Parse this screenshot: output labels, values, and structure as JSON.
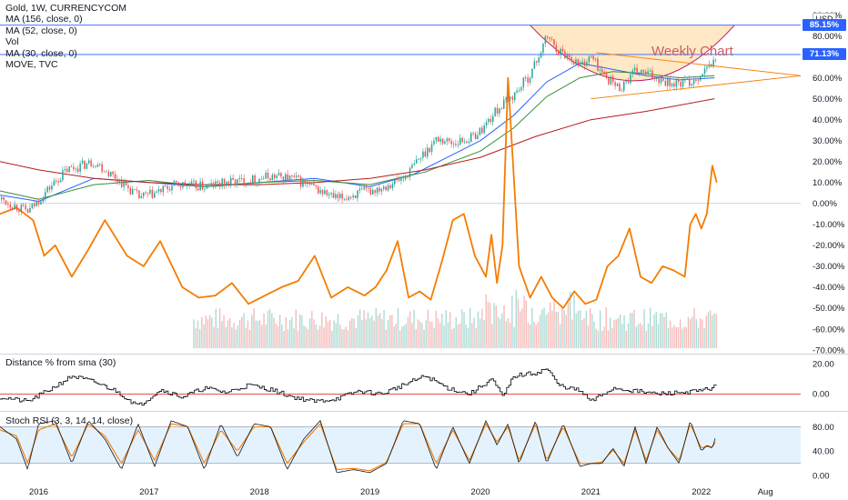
{
  "legend": {
    "symbol_line": "Gold, 1W, CURRENCYCOM",
    "ma156": "MA (156, close, 0)",
    "ma52": "MA (52, close, 0)",
    "vol": "Vol",
    "ma30": "MA (30, close, 0)",
    "move": "MOVE, TVC"
  },
  "currency_badge": "USD",
  "price_tags": [
    {
      "text": "85.15%",
      "value": 85.15,
      "color": "#2962ff"
    },
    {
      "text": "71.13%",
      "value": 71.13,
      "color": "#2962ff"
    }
  ],
  "annotation": "Weekly Chart",
  "colors": {
    "price_up": "#26a69a",
    "price_down": "#ef5350",
    "ma156": "#b71c1c",
    "ma52": "#388e3c",
    "ma30": "#2962ff",
    "move": "#f57c00",
    "volume_up": "#a8d8d2",
    "volume_down": "#f5b7b5",
    "cup_fill": "#ffe0b2",
    "cup_outline": "#c2185b",
    "stoch_band": "#e3f2fd",
    "distance_zero": "#e53935"
  },
  "chart_data": [
    {
      "type": "line",
      "title": "Gold, 1W, CURRENCYCOM",
      "y_scale": "percent",
      "ylim": [
        -70,
        95
      ],
      "y_ticks": [
        "90.00%",
        "80.00%",
        "70.00%",
        "60.00%",
        "50.00%",
        "40.00%",
        "30.00%",
        "20.00%",
        "10.00%",
        "0.00%",
        "-10.00%",
        "-20.00%",
        "-30.00%",
        "-40.00%",
        "-50.00%",
        "-60.00%",
        "-70.00%"
      ],
      "x_ticks": [
        "2016",
        "2017",
        "2018",
        "2019",
        "2020",
        "2021",
        "2022",
        "Aug"
      ],
      "x_tick_values": [
        2016.0,
        2017.0,
        2018.0,
        2019.0,
        2020.0,
        2021.0,
        2022.0,
        2022.58
      ],
      "xlim": [
        2015.65,
        2022.9
      ],
      "horizontal_levels": [
        85.15,
        71.13,
        0
      ],
      "series": [
        {
          "name": "Gold",
          "x": [
            2015.65,
            2015.9,
            2016.1,
            2016.25,
            2016.5,
            2016.75,
            2016.9,
            2017.0,
            2017.25,
            2017.5,
            2017.7,
            2017.9,
            2018.1,
            2018.3,
            2018.5,
            2018.7,
            2018.9,
            2019.0,
            2019.3,
            2019.45,
            2019.6,
            2019.75,
            2019.9,
            2020.0,
            2020.15,
            2020.3,
            2020.45,
            2020.6,
            2020.7,
            2020.8,
            2020.9,
            2021.0,
            2021.1,
            2021.25,
            2021.4,
            2021.5,
            2021.6,
            2021.75,
            2021.9,
            2022.0,
            2022.12
          ],
          "values": [
            2,
            -4,
            8,
            16,
            20,
            10,
            3,
            4,
            9,
            8,
            10,
            11,
            13,
            12,
            7,
            2,
            5,
            6,
            12,
            22,
            31,
            29,
            31,
            35,
            45,
            52,
            62,
            80,
            73,
            70,
            66,
            70,
            62,
            55,
            63,
            62,
            60,
            57,
            58,
            62,
            68
          ]
        },
        {
          "name": "MA (30, close, 0)",
          "x": [
            2015.65,
            2016.0,
            2016.5,
            2017.0,
            2017.5,
            2018.0,
            2018.5,
            2019.0,
            2019.4,
            2019.7,
            2020.0,
            2020.3,
            2020.6,
            2020.9,
            2021.2,
            2021.5,
            2021.8,
            2022.12
          ],
          "values": [
            4,
            1,
            12,
            10,
            8,
            10,
            12,
            8,
            14,
            22,
            30,
            42,
            58,
            67,
            64,
            61,
            59,
            60
          ]
        },
        {
          "name": "MA (52, close, 0)",
          "x": [
            2015.65,
            2016.0,
            2016.5,
            2017.0,
            2017.5,
            2018.0,
            2018.5,
            2019.0,
            2019.5,
            2020.0,
            2020.3,
            2020.6,
            2020.9,
            2021.2,
            2021.5,
            2021.8,
            2022.12
          ],
          "values": [
            6,
            2,
            9,
            11,
            8,
            10,
            11,
            9,
            15,
            25,
            36,
            51,
            60,
            63,
            62,
            60,
            61
          ]
        },
        {
          "name": "MA (156, close, 0)",
          "x": [
            2015.65,
            2016.0,
            2016.5,
            2017.0,
            2017.5,
            2018.0,
            2018.5,
            2019.0,
            2019.5,
            2020.0,
            2020.5,
            2021.0,
            2021.5,
            2022.12
          ],
          "values": [
            20,
            16,
            12,
            10,
            9,
            9,
            10,
            12,
            16,
            22,
            32,
            40,
            44,
            50
          ]
        },
        {
          "name": "MOVE, TVC",
          "x": [
            2015.65,
            2015.8,
            2015.95,
            2016.05,
            2016.15,
            2016.3,
            2016.45,
            2016.6,
            2016.8,
            2016.95,
            2017.1,
            2017.3,
            2017.45,
            2017.6,
            2017.75,
            2017.9,
            2018.05,
            2018.2,
            2018.35,
            2018.5,
            2018.65,
            2018.8,
            2018.95,
            2019.05,
            2019.15,
            2019.25,
            2019.35,
            2019.45,
            2019.55,
            2019.65,
            2019.75,
            2019.85,
            2019.95,
            2020.05,
            2020.1,
            2020.15,
            2020.2,
            2020.25,
            2020.35,
            2020.45,
            2020.55,
            2020.65,
            2020.75,
            2020.85,
            2020.95,
            2021.05,
            2021.15,
            2021.25,
            2021.35,
            2021.45,
            2021.55,
            2021.65,
            2021.75,
            2021.85,
            2021.9,
            2021.95,
            2022.0,
            2022.05,
            2022.1,
            2022.14
          ],
          "values": [
            -5,
            -2,
            -8,
            -25,
            -20,
            -35,
            -22,
            -8,
            -25,
            -30,
            -18,
            -40,
            -45,
            -44,
            -38,
            -48,
            -44,
            -40,
            -37,
            -25,
            -45,
            -40,
            -44,
            -40,
            -32,
            -18,
            -45,
            -42,
            -46,
            -28,
            -8,
            -5,
            -25,
            -35,
            -15,
            -38,
            -20,
            60,
            -30,
            -45,
            -35,
            -45,
            -50,
            -42,
            -48,
            -46,
            -30,
            -25,
            -12,
            -35,
            -38,
            -30,
            -32,
            -35,
            -10,
            -5,
            -12,
            -5,
            18,
            10
          ]
        }
      ],
      "volume": {
        "x_start": 2017.4,
        "x_end": 2022.14,
        "ylim": [
          0,
          100
        ]
      }
    },
    {
      "type": "line",
      "title": "Distance % from sma (30)",
      "ylim": [
        -10,
        25
      ],
      "y_ticks": [
        "20.00",
        "0.00"
      ],
      "series": [
        {
          "name": "Distance % from sma (30)",
          "x": [
            2015.65,
            2015.9,
            2016.1,
            2016.3,
            2016.5,
            2016.7,
            2016.9,
            2017.1,
            2017.3,
            2017.5,
            2017.7,
            2017.9,
            2018.1,
            2018.3,
            2018.5,
            2018.7,
            2018.9,
            2019.1,
            2019.3,
            2019.5,
            2019.7,
            2019.9,
            2020.1,
            2020.2,
            2020.3,
            2020.5,
            2020.6,
            2020.7,
            2020.9,
            2021.0,
            2021.2,
            2021.4,
            2021.6,
            2021.8,
            2022.0,
            2022.12
          ],
          "values": [
            -2,
            -5,
            3,
            12,
            8,
            2,
            -8,
            3,
            -2,
            4,
            1,
            6,
            3,
            -2,
            -5,
            -3,
            2,
            0,
            6,
            12,
            4,
            0,
            10,
            -2,
            12,
            14,
            17,
            6,
            2,
            -5,
            4,
            2,
            0,
            1,
            2,
            5
          ]
        }
      ]
    },
    {
      "type": "line",
      "title": "Stoch RSI (3, 3, 14, 14, close)",
      "ylim": [
        -10,
        100
      ],
      "y_ticks": [
        "80.00",
        "40.00",
        "0.00"
      ],
      "bands": [
        20,
        80
      ],
      "series": [
        {
          "name": "K",
          "x": [
            2015.65,
            2015.8,
            2015.9,
            2016.0,
            2016.15,
            2016.3,
            2016.45,
            2016.6,
            2016.75,
            2016.9,
            2017.05,
            2017.2,
            2017.35,
            2017.5,
            2017.65,
            2017.8,
            2017.95,
            2018.1,
            2018.25,
            2018.4,
            2018.55,
            2018.7,
            2018.85,
            2019.0,
            2019.15,
            2019.3,
            2019.45,
            2019.6,
            2019.75,
            2019.9,
            2020.05,
            2020.15,
            2020.25,
            2020.35,
            2020.5,
            2020.6,
            2020.75,
            2020.9,
            2021.0,
            2021.1,
            2021.2,
            2021.3,
            2021.4,
            2021.5,
            2021.6,
            2021.7,
            2021.8,
            2021.9,
            2022.0,
            2022.05,
            2022.1,
            2022.14
          ],
          "values": [
            80,
            60,
            10,
            85,
            90,
            20,
            90,
            60,
            10,
            85,
            15,
            90,
            80,
            10,
            85,
            30,
            85,
            80,
            10,
            60,
            90,
            5,
            10,
            5,
            20,
            90,
            85,
            10,
            80,
            20,
            90,
            50,
            85,
            20,
            90,
            20,
            85,
            15,
            20,
            20,
            45,
            15,
            80,
            20,
            80,
            45,
            20,
            90,
            40,
            50,
            45,
            70
          ]
        },
        {
          "name": "D",
          "x": [
            2015.65,
            2015.8,
            2015.9,
            2016.0,
            2016.15,
            2016.3,
            2016.45,
            2016.6,
            2016.75,
            2016.9,
            2017.05,
            2017.2,
            2017.35,
            2017.5,
            2017.65,
            2017.8,
            2017.95,
            2018.1,
            2018.25,
            2018.4,
            2018.55,
            2018.7,
            2018.85,
            2019.0,
            2019.15,
            2019.3,
            2019.45,
            2019.6,
            2019.75,
            2019.9,
            2020.05,
            2020.15,
            2020.25,
            2020.35,
            2020.5,
            2020.6,
            2020.75,
            2020.9,
            2021.0,
            2021.1,
            2021.2,
            2021.3,
            2021.4,
            2021.5,
            2021.6,
            2021.7,
            2021.8,
            2021.9,
            2022.0,
            2022.05,
            2022.1,
            2022.14
          ],
          "values": [
            75,
            65,
            20,
            75,
            85,
            30,
            85,
            65,
            20,
            75,
            25,
            85,
            80,
            20,
            75,
            40,
            80,
            80,
            20,
            55,
            85,
            10,
            12,
            8,
            22,
            85,
            85,
            20,
            75,
            25,
            85,
            55,
            80,
            25,
            85,
            25,
            80,
            20,
            20,
            22,
            42,
            20,
            75,
            25,
            75,
            45,
            25,
            85,
            45,
            48,
            46,
            60
          ]
        }
      ]
    }
  ]
}
